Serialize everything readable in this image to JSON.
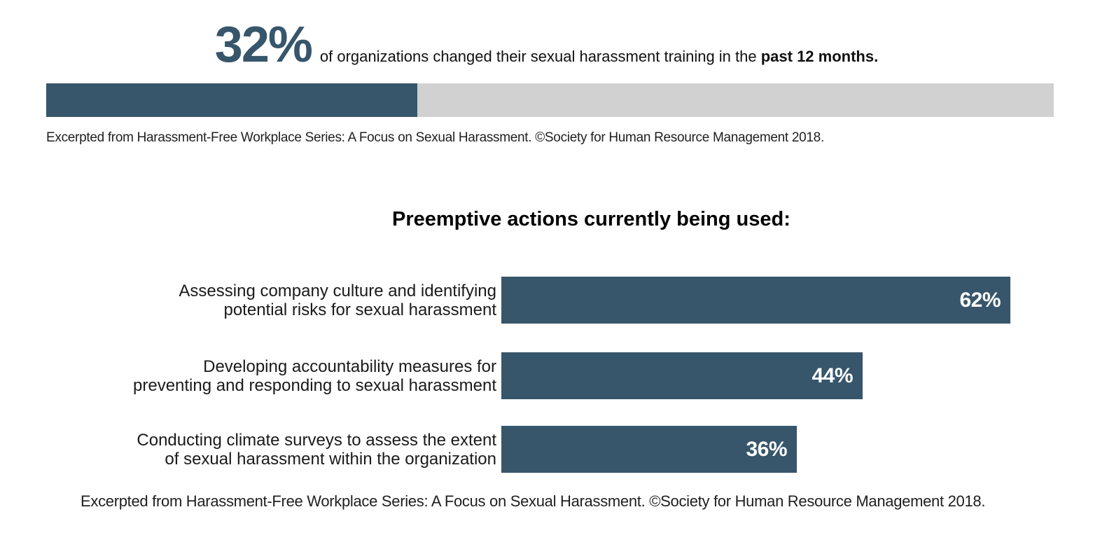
{
  "colors": {
    "accent": "#37566B",
    "track": "#D1D1D1",
    "text": "#1A1A1A",
    "bar_value_label": "#FFFFFF"
  },
  "chart_data": [
    {
      "type": "bar",
      "subtype": "single-stat-progress",
      "value": 32,
      "value_label": "32%",
      "text": "of organizations changed their sexual harassment training in the ",
      "text_bold": "past 12 months.",
      "xlim": [
        0,
        100
      ],
      "bar_color": "#37566B",
      "track_color": "#D1D1D1",
      "attribution": "Excerpted from Harassment-Free Workplace Series: A Focus on Sexual Harassment. ©Society for Human Resource Management 2018."
    },
    {
      "type": "bar",
      "orientation": "horizontal",
      "title": "Preemptive actions currently being used:",
      "categories": [
        "Assessing company culture and identifying potential risks for sexual harassment",
        "Developing accountability measures for preventing and responding to sexual harassment",
        "Conducting climate surveys to assess the extent of sexual harassment within the organization"
      ],
      "values": [
        62,
        44,
        36
      ],
      "xlim": [
        0,
        100
      ],
      "grid": false,
      "legend": false,
      "bar_color": "#37566B",
      "value_label_color": "#FFFFFF",
      "rows": [
        {
          "label_line1": "Assessing company culture and identifying",
          "label_line2": "potential risks for sexual harassment",
          "value": 62,
          "value_label": "62%"
        },
        {
          "label_line1": "Developing accountability measures for",
          "label_line2": "preventing and responding to sexual harassment",
          "value": 44,
          "value_label": "44%"
        },
        {
          "label_line1": "Conducting climate surveys to assess the extent",
          "label_line2": "of sexual harassment within the organization",
          "value": 36,
          "value_label": "36%"
        }
      ],
      "attribution": "Excerpted from Harassment-Free Workplace Series: A Focus on Sexual Harassment. ©Society for Human Resource Management 2018."
    }
  ]
}
